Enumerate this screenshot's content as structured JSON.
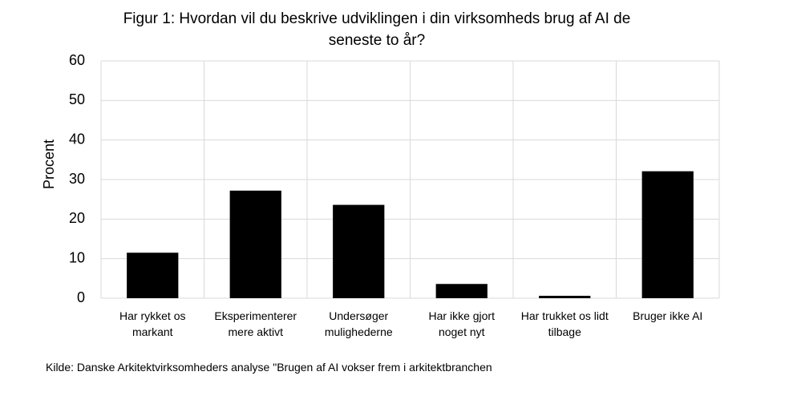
{
  "chart_data": {
    "type": "bar",
    "title": "Figur 1: Hvordan vil du beskrive udviklingen i din virksomheds brug af AI de seneste to år?",
    "y_label": "Procent",
    "categories": [
      "Har rykket os markant",
      "Eksperimenterer mere aktivt",
      "Undersøger mulighederne",
      "Har ikke gjort noget nyt",
      "Har trukket os lidt tilbage",
      "Bruger ikke AI"
    ],
    "values": [
      11.5,
      27.2,
      23.6,
      3.6,
      0.6,
      32.1
    ],
    "color": "#000000",
    "ylim": [
      0,
      60
    ],
    "yticks": [
      0,
      10,
      20,
      30,
      40,
      50,
      60
    ],
    "grid": true,
    "source": "Kilde: Danske Arkitektvirksomheders analyse \"Brugen af AI vokser frem i arkitektbranchen"
  }
}
